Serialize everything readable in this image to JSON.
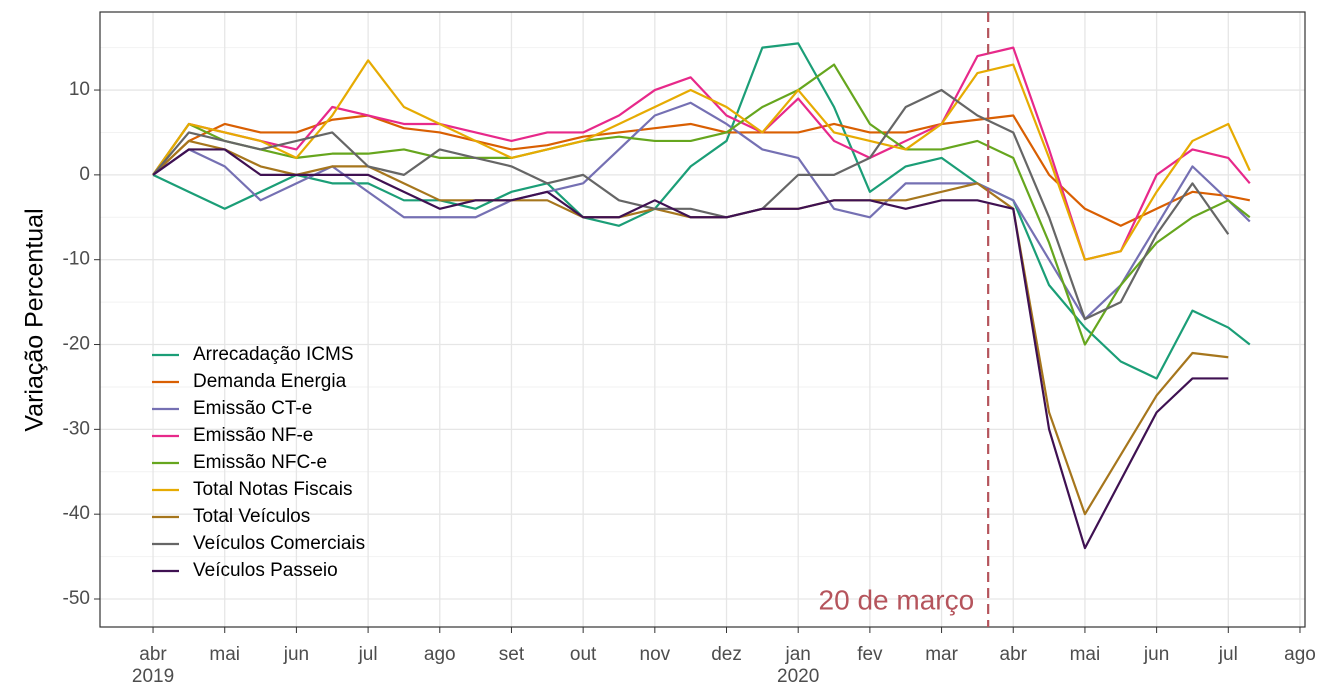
{
  "chart_data": {
    "type": "line",
    "y_label": "Variação Percentual",
    "x": [
      0,
      0.5,
      1,
      1.5,
      2,
      2.5,
      3,
      3.5,
      4,
      4.5,
      5,
      5.5,
      6,
      6.5,
      7,
      7.5,
      8,
      8.5,
      9,
      9.5,
      10,
      10.5,
      11,
      11.5,
      12,
      12.5,
      13,
      13.5,
      14,
      14.5,
      15,
      15.3
    ],
    "series": [
      {
        "name": "Arrecadação ICMS",
        "color": "#1b9e77",
        "values": [
          0,
          -2,
          -4,
          -2,
          0,
          -1,
          -1,
          -3,
          -3,
          -4,
          -2,
          -1,
          -5,
          -6,
          -4,
          1,
          4,
          15,
          15.5,
          8,
          -2,
          1,
          2,
          -1,
          -3,
          -13,
          -18,
          -22,
          -24,
          -16,
          -18,
          -20
        ]
      },
      {
        "name": "Demanda Energia",
        "color": "#d95f02",
        "values": [
          0,
          4,
          6,
          5,
          5,
          6.5,
          7,
          5.5,
          5,
          4,
          3,
          3.5,
          4.5,
          5,
          5.5,
          6,
          5,
          5,
          5,
          6,
          5,
          5,
          6,
          6.5,
          7,
          0,
          -4,
          -6,
          -4,
          -2,
          -2.5,
          -3
        ]
      },
      {
        "name": "Emissão CT-e",
        "color": "#7570b3",
        "values": [
          0,
          3,
          1,
          -3,
          -1,
          1,
          -2,
          -5,
          -5,
          -5,
          -3,
          -2,
          -1,
          3,
          7,
          8.5,
          6,
          3,
          2,
          -4,
          -5,
          -1,
          -1,
          -1,
          -3,
          -10,
          -17,
          -13,
          -6,
          1,
          -3,
          -5.5
        ]
      },
      {
        "name": "Emissão NF-e",
        "color": "#e7298a",
        "values": [
          0,
          6,
          5,
          4,
          3,
          8,
          7,
          6,
          6,
          5,
          4,
          5,
          5,
          7,
          10,
          11.5,
          7,
          5,
          9,
          4,
          2,
          4,
          6,
          14,
          15,
          3,
          -10,
          -9,
          0,
          3,
          2,
          -1
        ]
      },
      {
        "name": "Emissão NFC-e",
        "color": "#66a61e",
        "values": [
          0,
          6,
          4,
          3,
          2,
          2.5,
          2.5,
          3,
          2,
          2,
          2,
          3,
          4,
          4.5,
          4,
          4,
          5,
          8,
          10,
          13,
          6,
          3,
          3,
          4,
          2,
          -8,
          -20,
          -13,
          -8,
          -5,
          -3,
          -5
        ]
      },
      {
        "name": "Total Notas Fiscais",
        "color": "#e6ab02",
        "values": [
          0,
          6,
          5,
          4,
          2,
          7,
          13.5,
          8,
          6,
          4,
          2,
          3,
          4,
          6,
          8,
          10,
          8,
          5,
          10,
          5,
          4,
          3,
          6,
          12,
          13,
          2,
          -10,
          -9,
          -2,
          4,
          6,
          0.5
        ]
      },
      {
        "name": "Total Veículos",
        "color": "#a6761d",
        "values": [
          0,
          4,
          3,
          1,
          0,
          1,
          1,
          -1,
          -3,
          -3,
          -3,
          -3,
          -5,
          -5,
          -4,
          -5,
          -5,
          -4,
          -4,
          -3,
          -3,
          -3,
          -2,
          -1,
          -4,
          -28,
          -40,
          -33,
          -26,
          -21,
          -21.5,
          null
        ]
      },
      {
        "name": "Veículos Comerciais",
        "color": "#666666",
        "values": [
          0,
          5,
          4,
          3,
          4,
          5,
          1,
          0,
          3,
          2,
          1,
          -1,
          0,
          -3,
          -4,
          -4,
          -5,
          -4,
          0,
          0,
          2,
          8,
          10,
          7,
          5,
          -5,
          -17,
          -15,
          -7,
          -1,
          -7,
          null
        ]
      },
      {
        "name": "Veículos Passeio",
        "color": "#3f1152",
        "values": [
          0,
          3,
          3,
          0,
          0,
          0,
          0,
          -2,
          -4,
          -3,
          -3,
          -2,
          -5,
          -5,
          -3,
          -5,
          -5,
          -4,
          -4,
          -3,
          -3,
          -4,
          -3,
          -3,
          -4,
          -30,
          -44,
          -36,
          -28,
          -24,
          -24,
          null
        ]
      }
    ],
    "xlim": [
      -0.74,
      16.07
    ],
    "xticks": [
      {
        "value": 0,
        "label": "abr"
      },
      {
        "value": 1,
        "label": "mai"
      },
      {
        "value": 2,
        "label": "jun"
      },
      {
        "value": 3,
        "label": "jul"
      },
      {
        "value": 4,
        "label": "ago"
      },
      {
        "value": 5,
        "label": "set"
      },
      {
        "value": 6,
        "label": "out"
      },
      {
        "value": 7,
        "label": "nov"
      },
      {
        "value": 8,
        "label": "dez"
      },
      {
        "value": 9,
        "label": "jan"
      },
      {
        "value": 10,
        "label": "fev"
      },
      {
        "value": 11,
        "label": "mar"
      },
      {
        "value": 12,
        "label": "abr"
      },
      {
        "value": 13,
        "label": "mai"
      },
      {
        "value": 14,
        "label": "jun"
      },
      {
        "value": 15,
        "label": "jul"
      },
      {
        "value": 16,
        "label": "ago"
      }
    ],
    "xtick_years": [
      {
        "value": 0,
        "label": "2019"
      },
      {
        "value": 9,
        "label": "2020"
      }
    ],
    "ylim": [
      -53.3,
      19.2
    ],
    "yticks": [
      -50,
      -40,
      -30,
      -20,
      -10,
      0,
      10
    ],
    "y_minor_ticks": [
      -45,
      -35,
      -25,
      -15,
      -5,
      5,
      15
    ],
    "grid": true,
    "legend": "bottom-left",
    "vline": {
      "x": 11.65,
      "label": "20 de março",
      "color": "#b5545c"
    }
  }
}
